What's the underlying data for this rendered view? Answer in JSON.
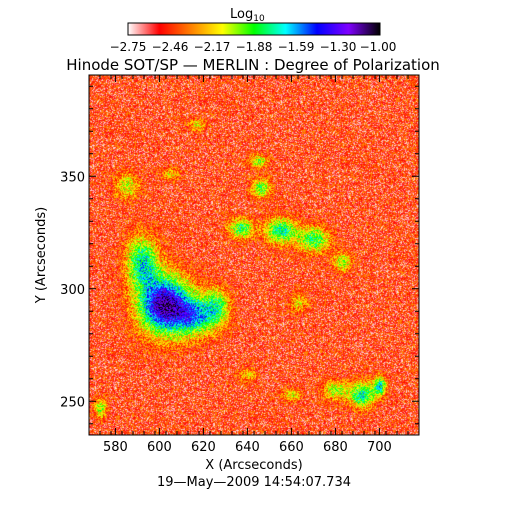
{
  "chart_data": {
    "type": "heatmap",
    "title": "Hinode SOT/SP — MERLIN : Degree of Polarization",
    "colorbar": {
      "label_base": "Log",
      "label_sub": "10",
      "ticks": [
        "−2.75",
        "−2.46",
        "−2.17",
        "−1.88",
        "−1.59",
        "−1.30",
        "−1.00"
      ],
      "range": [
        -2.75,
        -1.0
      ],
      "colormap": [
        "#ffffff",
        "#ff0000",
        "#ff8000",
        "#ffff00",
        "#00ff00",
        "#00ffff",
        "#0000ff",
        "#7f00ff",
        "#000000"
      ]
    },
    "xlabel": "X (Arcseconds)",
    "ylabel": "Y (Arcseconds)",
    "xlim": [
      568,
      718
    ],
    "ylim": [
      235,
      395
    ],
    "x_ticks": [
      {
        "value": 580,
        "label": "580"
      },
      {
        "value": 600,
        "label": "600"
      },
      {
        "value": 620,
        "label": "620"
      },
      {
        "value": 640,
        "label": "640"
      },
      {
        "value": 660,
        "label": "660"
      },
      {
        "value": 680,
        "label": "680"
      },
      {
        "value": 700,
        "label": "700"
      }
    ],
    "y_ticks": [
      {
        "value": 250,
        "label": "250"
      },
      {
        "value": 300,
        "label": "300"
      },
      {
        "value": 350,
        "label": "350"
      }
    ],
    "background_level": -2.7,
    "features": [
      {
        "x": 602,
        "y": 293,
        "sx": 8,
        "sy": 9,
        "amp": 1.6
      },
      {
        "x": 592,
        "y": 312,
        "sx": 5,
        "sy": 8,
        "amp": 0.9
      },
      {
        "x": 616,
        "y": 288,
        "sx": 6,
        "sy": 6,
        "amp": 0.9
      },
      {
        "x": 626,
        "y": 292,
        "sx": 4,
        "sy": 6,
        "amp": 0.7
      },
      {
        "x": 637,
        "y": 327,
        "sx": 4,
        "sy": 3,
        "amp": 0.8
      },
      {
        "x": 655,
        "y": 326,
        "sx": 5,
        "sy": 4,
        "amp": 0.9
      },
      {
        "x": 670,
        "y": 322,
        "sx": 5,
        "sy": 4,
        "amp": 0.8
      },
      {
        "x": 646,
        "y": 345,
        "sx": 3,
        "sy": 3,
        "amp": 0.7
      },
      {
        "x": 645,
        "y": 357,
        "sx": 3,
        "sy": 2,
        "amp": 0.6
      },
      {
        "x": 683,
        "y": 312,
        "sx": 3,
        "sy": 3,
        "amp": 0.6
      },
      {
        "x": 692,
        "y": 253,
        "sx": 4,
        "sy": 4,
        "amp": 0.9
      },
      {
        "x": 700,
        "y": 257,
        "sx": 2,
        "sy": 3,
        "amp": 0.9
      },
      {
        "x": 680,
        "y": 255,
        "sx": 4,
        "sy": 3,
        "amp": 0.6
      },
      {
        "x": 660,
        "y": 253,
        "sx": 3,
        "sy": 2,
        "amp": 0.5
      },
      {
        "x": 585,
        "y": 346,
        "sx": 4,
        "sy": 4,
        "amp": 0.5
      },
      {
        "x": 605,
        "y": 351,
        "sx": 3,
        "sy": 2,
        "amp": 0.4
      },
      {
        "x": 573,
        "y": 247,
        "sx": 2,
        "sy": 3,
        "amp": 0.6
      },
      {
        "x": 640,
        "y": 262,
        "sx": 3,
        "sy": 2,
        "amp": 0.4
      },
      {
        "x": 617,
        "y": 373,
        "sx": 3,
        "sy": 2,
        "amp": 0.4
      },
      {
        "x": 663,
        "y": 294,
        "sx": 3,
        "sy": 3,
        "amp": 0.4
      }
    ]
  },
  "timestamp": "19—May—2009 14:54:07.734"
}
